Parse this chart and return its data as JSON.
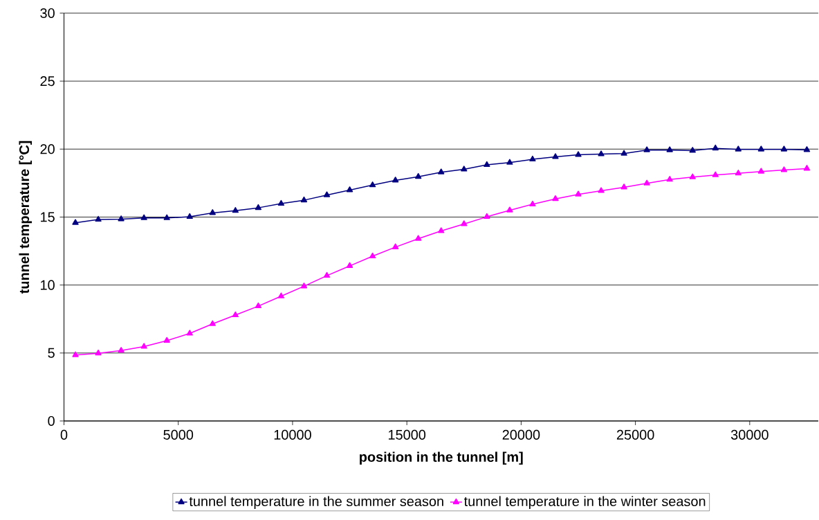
{
  "chart_data": {
    "type": "line",
    "xlabel": "position in the tunnel [m]",
    "ylabel": "tunnel temperature [°C]",
    "x": [
      500,
      1500,
      2500,
      3500,
      4500,
      5500,
      6500,
      7500,
      8500,
      9500,
      10500,
      11500,
      12500,
      13500,
      14500,
      15500,
      16500,
      17500,
      18500,
      19500,
      20500,
      21500,
      22500,
      23500,
      24500,
      25500,
      26500,
      27500,
      28500,
      29500,
      30500,
      31500,
      32500
    ],
    "series": [
      {
        "name": "tunnel temperature in the summer season",
        "color": "#000080",
        "values": [
          14.58,
          14.82,
          14.85,
          14.93,
          14.93,
          15.02,
          15.31,
          15.47,
          15.68,
          15.99,
          16.24,
          16.62,
          16.99,
          17.35,
          17.7,
          17.97,
          18.3,
          18.51,
          18.84,
          19.01,
          19.25,
          19.43,
          19.58,
          19.63,
          19.67,
          19.93,
          19.93,
          19.89,
          20.06,
          19.98,
          19.98,
          19.98,
          19.94
        ]
      },
      {
        "name": "tunnel temperature in the winter season",
        "color": "#ff00ff",
        "values": [
          4.85,
          4.98,
          5.18,
          5.47,
          5.91,
          6.44,
          7.14,
          7.79,
          8.45,
          9.18,
          9.91,
          10.69,
          11.41,
          12.12,
          12.79,
          13.41,
          13.98,
          14.49,
          15.02,
          15.5,
          15.94,
          16.34,
          16.67,
          16.93,
          17.19,
          17.48,
          17.76,
          17.94,
          18.09,
          18.22,
          18.35,
          18.46,
          18.57
        ]
      }
    ],
    "xlim": [
      0,
      33000
    ],
    "ylim": [
      0,
      30
    ],
    "xticks": [
      0,
      5000,
      10000,
      15000,
      20000,
      25000,
      30000
    ],
    "yticks": [
      0,
      5,
      10,
      15,
      20,
      25,
      30
    ],
    "grid": "y",
    "legend": "bottom",
    "marker": "triangle",
    "line_style": "solid"
  }
}
